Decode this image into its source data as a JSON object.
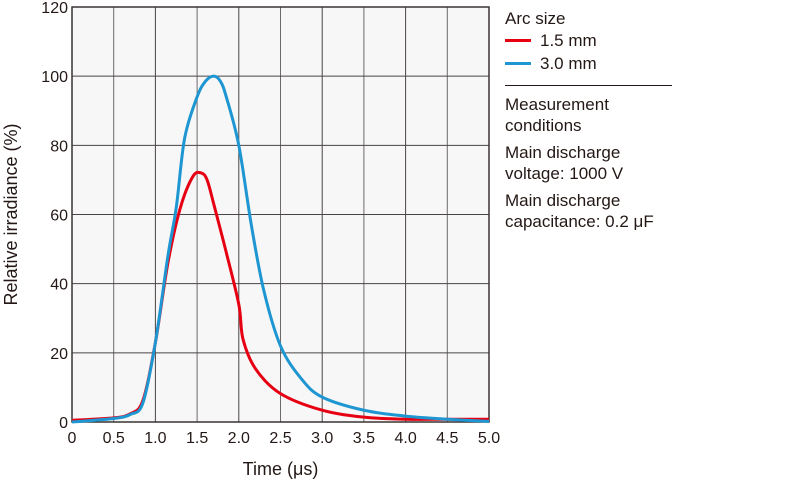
{
  "chart_data": {
    "type": "line",
    "xlabel": "Time (μs)",
    "ylabel": "Relative irradiance (%)",
    "xlim": [
      0,
      5.0
    ],
    "ylim": [
      0,
      120
    ],
    "xticks": [
      "0",
      "0.5",
      "1.0",
      "1.5",
      "2.0",
      "2.5",
      "3.0",
      "3.5",
      "4.0",
      "4.5",
      "5.0"
    ],
    "yticks": [
      "0",
      "20",
      "40",
      "60",
      "80",
      "100",
      "120"
    ],
    "grid": true,
    "legend_title": "Arc size",
    "legend_position": "right",
    "series": [
      {
        "name": "1.5 mm",
        "color": "#e60012",
        "x": [
          0,
          0.5,
          0.7,
          0.85,
          1.0,
          1.15,
          1.3,
          1.45,
          1.55,
          1.62,
          1.7,
          1.85,
          2.0,
          2.05,
          2.2,
          2.5,
          3.0,
          3.5,
          4.0,
          4.5,
          5.0
        ],
        "y": [
          0.5,
          1.2,
          2.4,
          6.2,
          23,
          46,
          62,
          71,
          72,
          70,
          63,
          49,
          34,
          24,
          15.4,
          8.2,
          3.4,
          1.4,
          0.8,
          0.8,
          0.8
        ]
      },
      {
        "name": "3.0 mm",
        "color": "#1e96d2",
        "x": [
          0,
          0.5,
          0.7,
          0.85,
          1.0,
          1.15,
          1.25,
          1.35,
          1.5,
          1.6,
          1.7,
          1.78,
          1.85,
          2.0,
          2.15,
          2.3,
          2.5,
          2.75,
          3.0,
          3.5,
          4.0,
          4.5,
          5.0
        ],
        "y": [
          0,
          1,
          2.2,
          5.5,
          23,
          48,
          62,
          82,
          94,
          98.5,
          100,
          98.5,
          94,
          80,
          57,
          38,
          22,
          12.5,
          7.2,
          3.4,
          1.7,
          0.8,
          0.2
        ]
      }
    ]
  },
  "conditions": {
    "title": "Measurement conditions",
    "voltage": "Main discharge voltage: 1000 V",
    "capacitance": "Main discharge capacitance: 0.2 μF"
  }
}
